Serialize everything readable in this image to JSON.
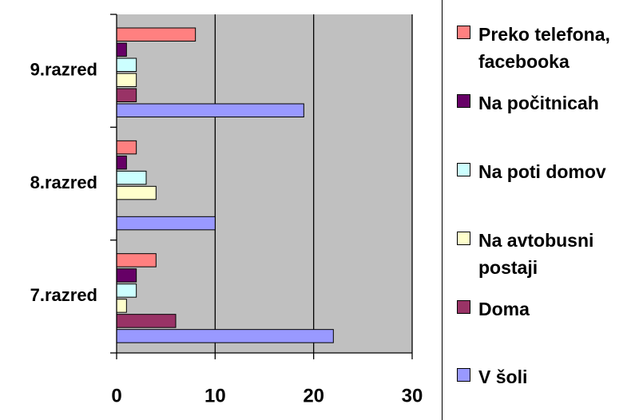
{
  "chart_data": {
    "type": "bar",
    "orientation": "horizontal",
    "categories": [
      "7.razred",
      "8.razred",
      "9.razred"
    ],
    "series": [
      {
        "name": "Preko telefona, facebooka",
        "color": "#ff8080",
        "values": [
          4,
          2,
          8
        ]
      },
      {
        "name": "Na počitnicah",
        "color": "#660066",
        "values": [
          2,
          1,
          1
        ]
      },
      {
        "name": "Na poti domov",
        "color": "#ccffff",
        "values": [
          2,
          3,
          2
        ]
      },
      {
        "name": "Na avtobusni postaji",
        "color": "#ffffcc",
        "values": [
          1,
          4,
          2
        ]
      },
      {
        "name": "Doma",
        "color": "#993366",
        "values": [
          6,
          0,
          2
        ]
      },
      {
        "name": "V šoli",
        "color": "#9999ff",
        "values": [
          22,
          10,
          19
        ]
      }
    ],
    "xlim": [
      0,
      30
    ],
    "xticks": [
      0,
      10,
      20,
      30
    ],
    "grid": true,
    "legend": "right"
  }
}
